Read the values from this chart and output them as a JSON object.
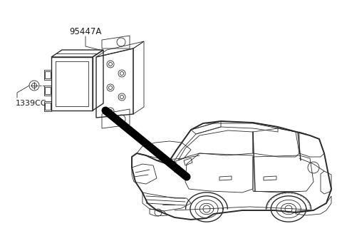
{
  "background_color": "#ffffff",
  "label_95447A": "95447A",
  "label_1339CC": "1339CC",
  "line_color": "#2a2a2a",
  "thick_line_color": "#000000",
  "fig_width": 4.8,
  "fig_height": 3.24,
  "dpi": 100
}
